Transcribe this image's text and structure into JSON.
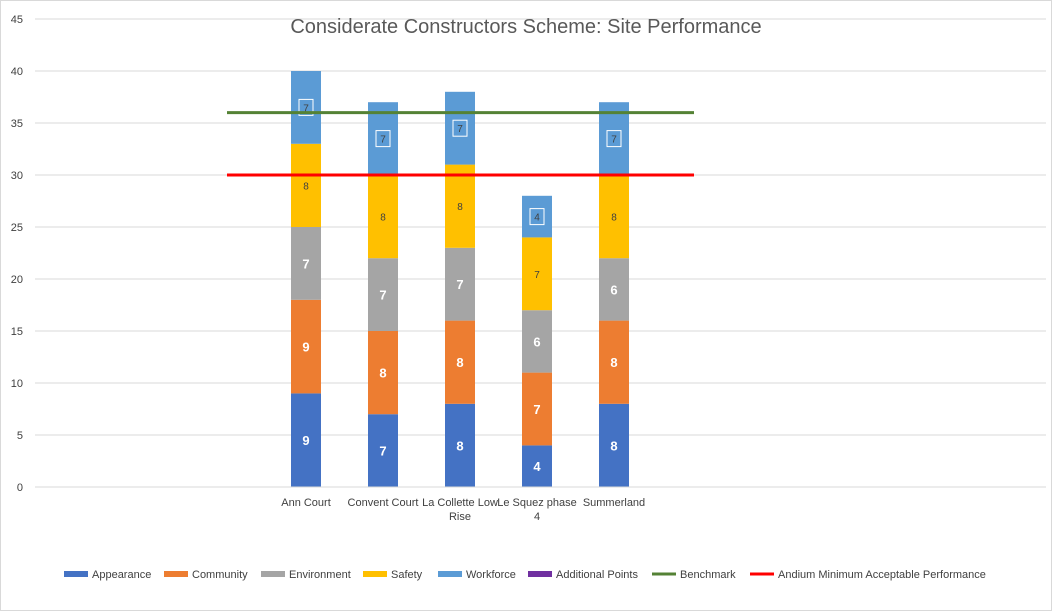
{
  "chart_data": {
    "type": "bar",
    "stacked": true,
    "title": "Considerate Constructors Scheme: Site Performance",
    "categories": [
      "Ann Court",
      "Convent Court",
      "La Collette Low Rise",
      "Le Squez phase 4",
      "Summerland"
    ],
    "series": [
      {
        "name": "Appearance",
        "color": "#4472c4",
        "values": [
          9,
          7,
          8,
          4,
          8
        ]
      },
      {
        "name": "Community",
        "color": "#ed7d31",
        "values": [
          9,
          8,
          8,
          7,
          8
        ]
      },
      {
        "name": "Environment",
        "color": "#a5a5a5",
        "values": [
          7,
          7,
          7,
          6,
          6
        ]
      },
      {
        "name": "Safety",
        "color": "#ffc000",
        "values": [
          8,
          8,
          8,
          7,
          8
        ]
      },
      {
        "name": "Workforce",
        "color": "#5b9bd5",
        "values": [
          7,
          7,
          7,
          4,
          7
        ]
      },
      {
        "name": "Additional Points",
        "color": "#7030a0",
        "values": [
          0,
          0,
          0,
          0,
          0
        ]
      }
    ],
    "lines": [
      {
        "name": "Benchmark",
        "color": "#548235",
        "value": 36
      },
      {
        "name": "Andium Minimum Acceptable Performance",
        "color": "#ff0000",
        "value": 30
      }
    ],
    "ylim": [
      0,
      45
    ],
    "yticks": [
      0,
      5,
      10,
      15,
      20,
      25,
      30,
      35,
      40,
      45
    ],
    "grid": true,
    "legend": "bottom"
  }
}
